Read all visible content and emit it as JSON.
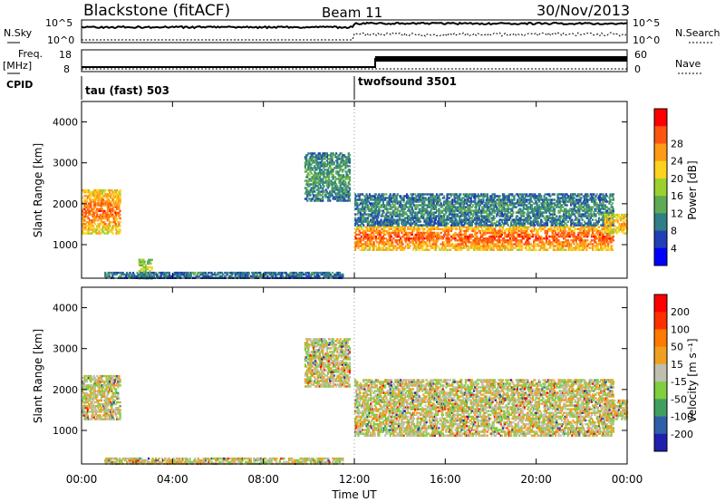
{
  "header": {
    "station": "Blackstone (fitACF)",
    "beam": "Beam 11",
    "date": "30/Nov/2013"
  },
  "labels": {
    "nsky": "N.Sky",
    "nsky_hi": "10^5",
    "nsky_lo": "10^0",
    "nsearch": "N.Search",
    "nsearch_hi": "10^5",
    "nsearch_lo": "10^0",
    "freq_line1": "Freq.",
    "freq_line2": "[MHz]",
    "freq_hi": "18",
    "freq_lo": "8",
    "nave": "Nave",
    "nave_hi": "60",
    "nave_lo": "0",
    "cpid": "CPID",
    "cpid_a": "tau (fast) 503",
    "cpid_b": "twofsound 3501",
    "ylabel_power": "Slant Range [km]",
    "ylabel_velocity": "Slant Range [km]",
    "xlabel": "Time UT",
    "power_cbar_label": "Power [dB]",
    "velocity_cbar_label": "Velocity [m s⁻¹]"
  },
  "chart_data": [
    {
      "type": "heatmap",
      "name": "power",
      "xlabel": "Time UT",
      "ylabel": "Slant Range [km]",
      "x_ticks": [
        "00:00",
        "04:00",
        "08:00",
        "12:00",
        "16:00",
        "20:00",
        "00:00"
      ],
      "x_range_hours": [
        0,
        24
      ],
      "y_ticks": [
        1000,
        2000,
        3000,
        4000
      ],
      "ylim": [
        180,
        4500
      ],
      "colorbar": {
        "label": "Power [dB]",
        "ticks": [
          "4",
          "8",
          "12",
          "16",
          "20",
          "24",
          "28"
        ],
        "colors": [
          "#0000ff",
          "#1f3fb7",
          "#2f7f86",
          "#5faa55",
          "#9bd12e",
          "#ffd21f",
          "#ff9a14",
          "#ff5511",
          "#ff0000"
        ]
      },
      "echo_bands": [
        {
          "t0": 0.0,
          "t1": 1.7,
          "r0": 1300,
          "r1": 2400,
          "level": 0.85
        },
        {
          "t0": 2.5,
          "t1": 3.1,
          "r0": 200,
          "r1": 700,
          "level": 0.55
        },
        {
          "t0": 1.0,
          "t1": 11.5,
          "r0": 210,
          "r1": 380,
          "level": 0.25
        },
        {
          "t0": 9.8,
          "t1": 11.8,
          "r0": 2100,
          "r1": 3300,
          "level": 0.35
        },
        {
          "t0": 12.0,
          "t1": 23.4,
          "r0": 900,
          "r1": 1500,
          "level": 0.9
        },
        {
          "t0": 12.0,
          "t1": 23.4,
          "r0": 1500,
          "r1": 2300,
          "level": 0.3
        },
        {
          "t0": 23.0,
          "t1": 24.0,
          "r0": 1300,
          "r1": 1800,
          "level": 0.75
        }
      ]
    },
    {
      "type": "heatmap",
      "name": "velocity",
      "xlabel": "Time UT",
      "ylabel": "Slant Range [km]",
      "x_ticks": [
        "00:00",
        "04:00",
        "08:00",
        "12:00",
        "16:00",
        "20:00",
        "00:00"
      ],
      "x_range_hours": [
        0,
        24
      ],
      "y_ticks": [
        1000,
        2000,
        3000,
        4000
      ],
      "ylim": [
        180,
        4500
      ],
      "colorbar": {
        "label": "Velocity [m s⁻¹]",
        "ticks": [
          "200",
          "100",
          "50",
          "15",
          "-15",
          "-50",
          "-100",
          "-200"
        ],
        "colors": [
          "#1f1fb0",
          "#2f5fa8",
          "#3f9f5f",
          "#7fcf3f",
          "#bfbfb0",
          "#f0a020",
          "#ff7a00",
          "#ff3000",
          "#ff0000"
        ]
      },
      "echo_bands": [
        {
          "t0": 0.0,
          "t1": 1.7,
          "r0": 1300,
          "r1": 2400,
          "level": 0.5
        },
        {
          "t0": 1.0,
          "t1": 11.5,
          "r0": 210,
          "r1": 380,
          "level": 0.3
        },
        {
          "t0": 9.8,
          "t1": 11.8,
          "r0": 2100,
          "r1": 3300,
          "level": 0.5
        },
        {
          "t0": 12.0,
          "t1": 23.4,
          "r0": 900,
          "r1": 1500,
          "level": 0.5
        },
        {
          "t0": 12.0,
          "t1": 23.4,
          "r0": 1500,
          "r1": 2300,
          "level": 0.5
        },
        {
          "t0": 23.0,
          "t1": 24.0,
          "r0": 1300,
          "r1": 1800,
          "level": 0.5
        }
      ]
    }
  ]
}
